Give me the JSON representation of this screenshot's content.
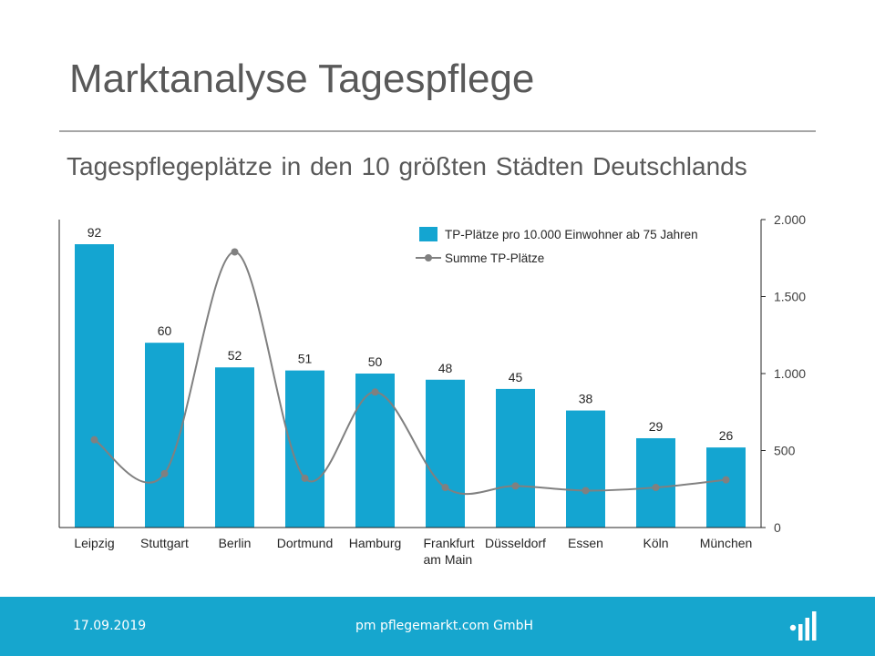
{
  "slide": {
    "title": "Marktanalyse Tagespflege",
    "subtitle": "Tagespflegeplätze in den 10 größten Städten Deutschlands"
  },
  "footer": {
    "date": "17.09.2019",
    "company": "pm pflegemarkt.com GmbH",
    "logo_icon": "bar-chart-logo-icon",
    "background_color": "#16a6ce"
  },
  "chart_data": {
    "type": "bar",
    "categories": [
      [
        "Leipzig"
      ],
      [
        "Stuttgart"
      ],
      [
        "Berlin"
      ],
      [
        "Dortmund"
      ],
      [
        "Hamburg"
      ],
      [
        "Frankfurt",
        "am Main"
      ],
      [
        "Düsseldorf"
      ],
      [
        "Essen"
      ],
      [
        "Köln"
      ],
      [
        "München"
      ]
    ],
    "series": [
      {
        "name": "TP-Plätze pro 10.000 Einwohner ab 75 Jahren",
        "type": "bar",
        "axis": "left",
        "color": "#14a5d1",
        "values": [
          92,
          60,
          52,
          51,
          50,
          48,
          45,
          38,
          29,
          26
        ],
        "data_labels": [
          "92",
          "60",
          "52",
          "51",
          "50",
          "48",
          "45",
          "38",
          "29",
          "26"
        ]
      },
      {
        "name": "Summe TP-Plätze",
        "type": "line",
        "smooth": true,
        "axis": "right",
        "color": "#808080",
        "values": [
          570,
          350,
          1790,
          320,
          880,
          260,
          270,
          240,
          260,
          310
        ]
      }
    ],
    "y_left": {
      "lim": [
        0,
        100
      ],
      "visible_ticks": false
    },
    "y_right": {
      "lim": [
        0,
        2000
      ],
      "ticks": [
        0,
        500,
        1000,
        1500,
        2000
      ],
      "tick_labels": [
        "0",
        "500",
        "1.000",
        "1.500",
        "2.000"
      ]
    },
    "legend": {
      "position": "top-right"
    },
    "grid": false
  }
}
